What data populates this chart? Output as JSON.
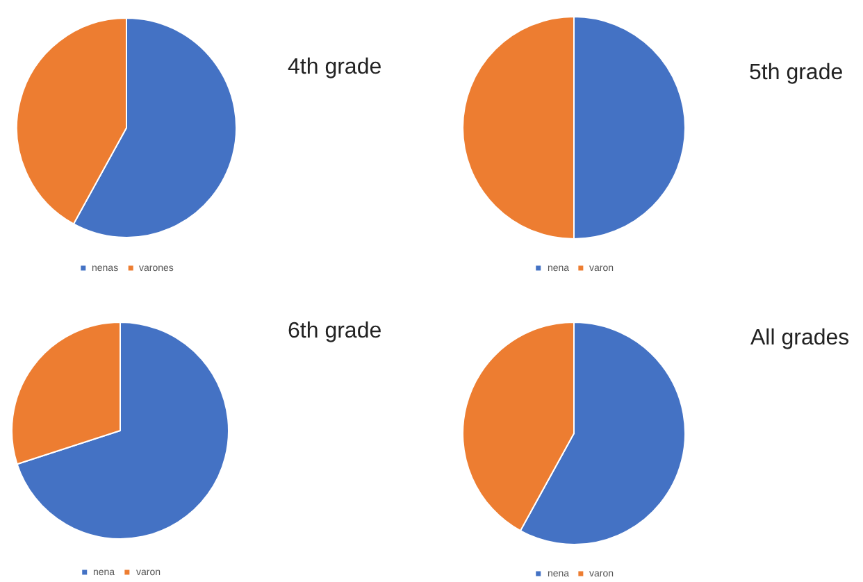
{
  "chart_data": [
    {
      "type": "pie",
      "title": "4th grade",
      "categories": [
        "nenas",
        "varones"
      ],
      "values": [
        58,
        42
      ],
      "colors": [
        "#4472c4",
        "#ed7d31"
      ],
      "legend": "bottom"
    },
    {
      "type": "pie",
      "title": "5th grade",
      "categories": [
        "nena",
        "varon"
      ],
      "values": [
        50,
        50
      ],
      "colors": [
        "#4472c4",
        "#ed7d31"
      ],
      "legend": "bottom"
    },
    {
      "type": "pie",
      "title": "6th grade",
      "categories": [
        "nena",
        "varon"
      ],
      "values": [
        70,
        30
      ],
      "colors": [
        "#4472c4",
        "#ed7d31"
      ],
      "legend": "bottom"
    },
    {
      "type": "pie",
      "title": "All grades",
      "categories": [
        "nena",
        "varon"
      ],
      "values": [
        58,
        42
      ],
      "colors": [
        "#4472c4",
        "#ed7d31"
      ],
      "legend": "bottom"
    }
  ]
}
